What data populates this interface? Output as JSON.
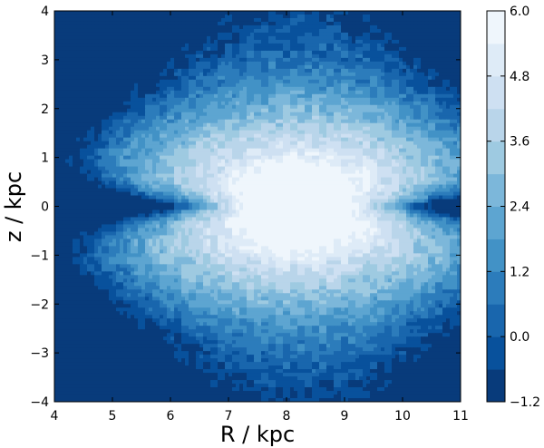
{
  "chart_data": {
    "type": "heatmap",
    "subtype": "filled-contour",
    "title": "",
    "xlabel": "R / kpc",
    "ylabel": "z / kpc",
    "xlim": [
      4,
      11
    ],
    "ylim": [
      -4,
      4
    ],
    "xticks": [
      4,
      5,
      6,
      7,
      8,
      9,
      10,
      11
    ],
    "yticks": [
      -4,
      -3,
      -2,
      -1,
      0,
      1,
      2,
      3,
      4
    ],
    "peak": {
      "R": 8.2,
      "z": 0.0
    },
    "colorbar": {
      "range": [
        -1.2,
        6.0
      ],
      "level_step": 0.6,
      "tick_values": [
        -1.2,
        0.0,
        1.2,
        2.4,
        3.6,
        4.8,
        6.0
      ],
      "tick_labels": [
        "−1.2",
        "0.0",
        "1.2",
        "2.4",
        "3.6",
        "4.8",
        "6.0"
      ],
      "colormap": "Blues",
      "color_low": "#08306b",
      "color_high": "#f7fbff"
    },
    "x_tick_labels": [
      "4",
      "5",
      "6",
      "7",
      "8",
      "9",
      "10",
      "11"
    ],
    "y_tick_labels": [
      "−4",
      "−3",
      "−2",
      "−1",
      "0",
      "1",
      "2",
      "3",
      "4"
    ]
  }
}
